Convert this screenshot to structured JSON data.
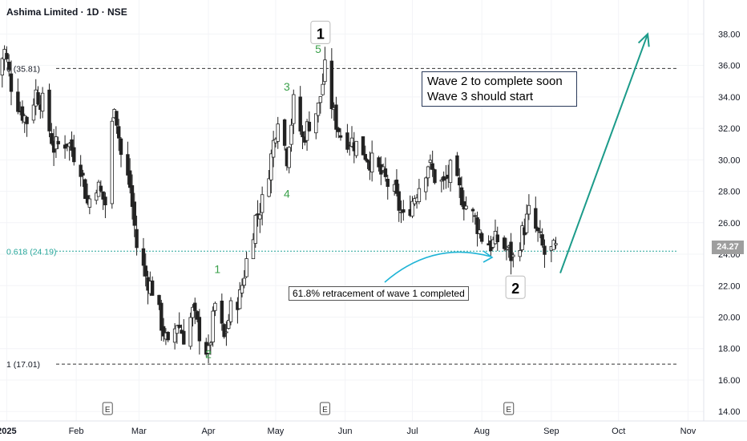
{
  "header": {
    "title": "Ashima Limited · 1D · NSE"
  },
  "annotations": {
    "box_line1": "Wave 2 to complete soon",
    "box_line2": "Wave 3 should start",
    "retracement_note": "61.8% retracement of wave 1 completed",
    "fib_top": "0 (35.81)",
    "fib_618": "0.618 (24.19)",
    "fib_bottom": "1 (17.01)",
    "wave_big_1": "1",
    "wave_big_2": "2",
    "small_waves": [
      {
        "label": "1",
        "date": "2025-04-05",
        "price": 22.8
      },
      {
        "label": "2",
        "date": "2025-04-01",
        "price": 17.4
      },
      {
        "label": "3",
        "date": "2025-05-06",
        "price": 34.4
      },
      {
        "label": "4",
        "date": "2025-05-06",
        "price": 27.6
      },
      {
        "label": "5",
        "date": "2025-05-20",
        "price": 36.8
      }
    ],
    "earnings_marker": "E"
  },
  "price_tag": "24.27",
  "colors": {
    "fib_line": "#26a69a",
    "green_label": "#3aa04a",
    "arrow": "#1c9b8a",
    "curve_arrow": "#1fb4d6"
  },
  "chart_data": {
    "type": "candlestick",
    "y_ticks": [
      "14.00",
      "16.00",
      "18.00",
      "20.00",
      "22.00",
      "24.00",
      "26.00",
      "28.00",
      "30.00",
      "32.00",
      "34.00",
      "36.00",
      "38.00"
    ],
    "ylim": [
      13.5,
      39.5
    ],
    "x_ticks": [
      "2025",
      "Feb",
      "Mar",
      "Apr",
      "May",
      "Jun",
      "Jul",
      "Aug",
      "Sep",
      "Oct",
      "Nov"
    ],
    "x_range": [
      "2024-12-29",
      "2025-11-08"
    ],
    "levels": [
      {
        "label": "0 (35.81)",
        "value": 35.81
      },
      {
        "label": "0.618 (24.19)",
        "value": 24.19
      },
      {
        "label": "1 (17.01)",
        "value": 17.01
      }
    ],
    "last_price": 24.27,
    "earnings_dates": [
      "2025-02-15",
      "2025-05-23",
      "2025-08-13"
    ],
    "projection": {
      "from": {
        "date": "2025-09-05",
        "price": 22.8
      },
      "to": {
        "date": "2025-10-14",
        "price": 38.0
      }
    },
    "close_path": [
      [
        "2024-12-27",
        35.4
      ],
      [
        "2024-12-31",
        36.9
      ],
      [
        "2025-01-03",
        34.8
      ],
      [
        "2025-01-07",
        33.2
      ],
      [
        "2025-01-10",
        32.5
      ],
      [
        "2025-01-14",
        34.3
      ],
      [
        "2025-01-17",
        33.6
      ],
      [
        "2025-01-22",
        30.8
      ],
      [
        "2025-01-28",
        31.2
      ],
      [
        "2025-02-03",
        29.6
      ],
      [
        "2025-02-06",
        27.2
      ],
      [
        "2025-02-10",
        28.5
      ],
      [
        "2025-02-14",
        27.2
      ],
      [
        "2025-02-18",
        33.8
      ],
      [
        "2025-02-21",
        30.3
      ],
      [
        "2025-02-25",
        28.3
      ],
      [
        "2025-02-28",
        24.5
      ],
      [
        "2025-03-04",
        22.6
      ],
      [
        "2025-03-07",
        21.8
      ],
      [
        "2025-03-11",
        19.6
      ],
      [
        "2025-03-14",
        18.0
      ],
      [
        "2025-03-18",
        19.7
      ],
      [
        "2025-03-21",
        18.8
      ],
      [
        "2025-03-25",
        20.3
      ],
      [
        "2025-03-28",
        19.0
      ],
      [
        "2025-04-01",
        17.6
      ],
      [
        "2025-04-04",
        20.8
      ],
      [
        "2025-04-08",
        18.6
      ],
      [
        "2025-04-11",
        20.5
      ],
      [
        "2025-04-15",
        21.3
      ],
      [
        "2025-04-18",
        23.6
      ],
      [
        "2025-04-22",
        26.3
      ],
      [
        "2025-04-25",
        27.3
      ],
      [
        "2025-04-29",
        30.2
      ],
      [
        "2025-05-02",
        32.9
      ],
      [
        "2025-05-06",
        30.2
      ],
      [
        "2025-05-09",
        33.6
      ],
      [
        "2025-05-13",
        31.3
      ],
      [
        "2025-05-16",
        32.4
      ],
      [
        "2025-05-20",
        33.3
      ],
      [
        "2025-05-23",
        35.7
      ],
      [
        "2025-05-27",
        32.8
      ],
      [
        "2025-05-30",
        31.6
      ],
      [
        "2025-06-04",
        31.2
      ],
      [
        "2025-06-09",
        30.6
      ],
      [
        "2025-06-13",
        29.8
      ],
      [
        "2025-06-18",
        28.9
      ],
      [
        "2025-06-23",
        27.8
      ],
      [
        "2025-06-27",
        26.2
      ],
      [
        "2025-07-01",
        27.4
      ],
      [
        "2025-07-04",
        28.4
      ],
      [
        "2025-07-08",
        29.8
      ],
      [
        "2025-07-11",
        28.9
      ],
      [
        "2025-07-15",
        28.4
      ],
      [
        "2025-07-18",
        29.3
      ],
      [
        "2025-07-22",
        28.0
      ],
      [
        "2025-07-25",
        27.1
      ],
      [
        "2025-07-29",
        26.2
      ],
      [
        "2025-08-01",
        25.1
      ],
      [
        "2025-08-05",
        24.6
      ],
      [
        "2025-08-08",
        24.9
      ],
      [
        "2025-08-12",
        24.3
      ],
      [
        "2025-08-15",
        23.7
      ],
      [
        "2025-08-19",
        25.3
      ],
      [
        "2025-08-22",
        26.6
      ],
      [
        "2025-08-26",
        25.2
      ],
      [
        "2025-08-29",
        24.0
      ],
      [
        "2025-09-03",
        24.27
      ]
    ]
  }
}
